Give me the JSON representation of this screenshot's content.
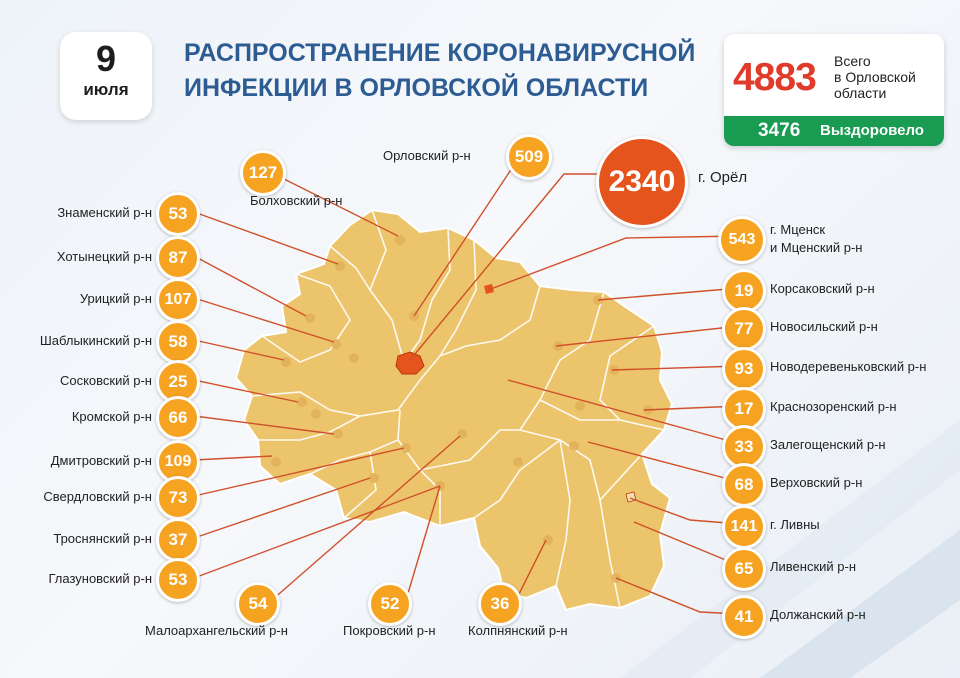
{
  "date": {
    "day": "9",
    "month": "июля"
  },
  "title": {
    "line1": "РАСПРОСТРАНЕНИЕ КОРОНАВИРУСНОЙ",
    "line2": "ИНФЕКЦИИ В ОРЛОВСКОЙ ОБЛАСТИ"
  },
  "total": {
    "value": "4883",
    "label1": "Всего",
    "label2": "в Орловской",
    "label3": "области"
  },
  "recovered": {
    "value": "3476",
    "label": "Выздоровело"
  },
  "colors": {
    "map_fill": "#ecc46b",
    "circle": "#f6a321",
    "city": "#e5541c",
    "recovered_bar": "#199b52",
    "total_text": "#e03a2a",
    "title_text": "#2d5c93",
    "leader_line": "#d0502a"
  },
  "districts": {
    "bolkhov": {
      "value": "127",
      "name": "Болховский р-н"
    },
    "orlovsky": {
      "value": "509",
      "name": "Орловский р-н"
    },
    "orel": {
      "value": "2340",
      "name": "г. Орёл"
    },
    "znamensky": {
      "value": "53",
      "name": "Знаменский р-н"
    },
    "khotynets": {
      "value": "87",
      "name": "Хотынецкий р-н"
    },
    "uritsky": {
      "value": "107",
      "name": "Урицкий р-н"
    },
    "shablykino": {
      "value": "58",
      "name": "Шаблыкинский р-н"
    },
    "sosky": {
      "value": "25",
      "name": "Сосковский р-н"
    },
    "kromy": {
      "value": "66",
      "name": "Кромской р-н"
    },
    "dmitrovsk": {
      "value": "109",
      "name": "Дмитровский р-н"
    },
    "sverdlovsky": {
      "value": "73",
      "name": "Свердловский р-н"
    },
    "trosna": {
      "value": "37",
      "name": "Троснянский р-н"
    },
    "glazunovka": {
      "value": "53",
      "name": "Глазуновский р-н"
    },
    "maloarkhangelsk": {
      "value": "54",
      "name": "Малоархангельский р-н"
    },
    "pokrovskoe": {
      "value": "52",
      "name": "Покровский р-н"
    },
    "kolpny": {
      "value": "36",
      "name": "Колпнянский р-н"
    },
    "mtsensk": {
      "value": "543",
      "name1": "г. Мценск",
      "name2": "и Мценский р-н"
    },
    "korsakovo": {
      "value": "19",
      "name": "Корсаковский р-н"
    },
    "novosil": {
      "value": "77",
      "name": "Новосильский р-н"
    },
    "novoderevenkovsky": {
      "value": "93",
      "name": "Новодеревеньковский р-н"
    },
    "krasnaya_zarya": {
      "value": "17",
      "name": "Краснозоренский р-н"
    },
    "zalegoshch": {
      "value": "33",
      "name": "Залегощенский р-н"
    },
    "verkhovye": {
      "value": "68",
      "name": "Верховский р-н"
    },
    "livny_city": {
      "value": "141",
      "name": "г. Ливны"
    },
    "livensky": {
      "value": "65",
      "name": "Ливенский р-н"
    },
    "dolzhansky": {
      "value": "41",
      "name": "Должанский р-н"
    }
  }
}
